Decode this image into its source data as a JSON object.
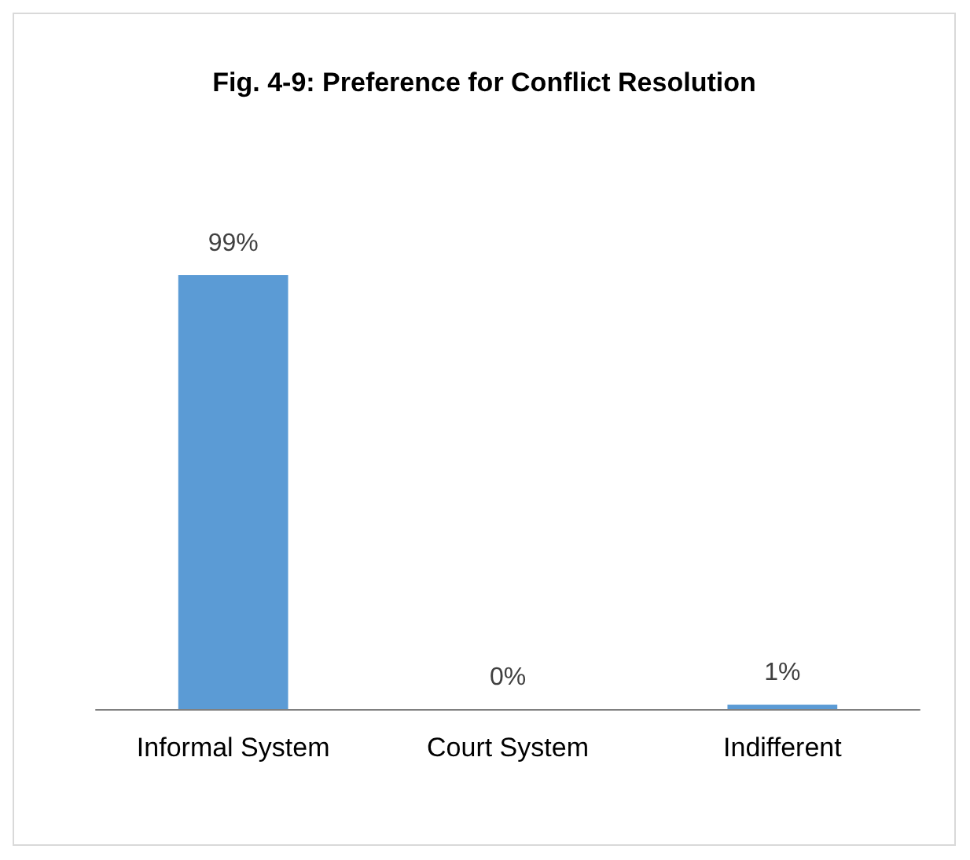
{
  "chart_data": {
    "type": "bar",
    "title": "Fig. 4-9: Preference for Conflict Resolution",
    "categories": [
      "Informal System",
      "Court System",
      "Indifferent"
    ],
    "values": [
      99,
      0,
      1
    ],
    "value_labels": [
      "99%",
      "0%",
      "1%"
    ],
    "color": "#5b9bd5"
  }
}
